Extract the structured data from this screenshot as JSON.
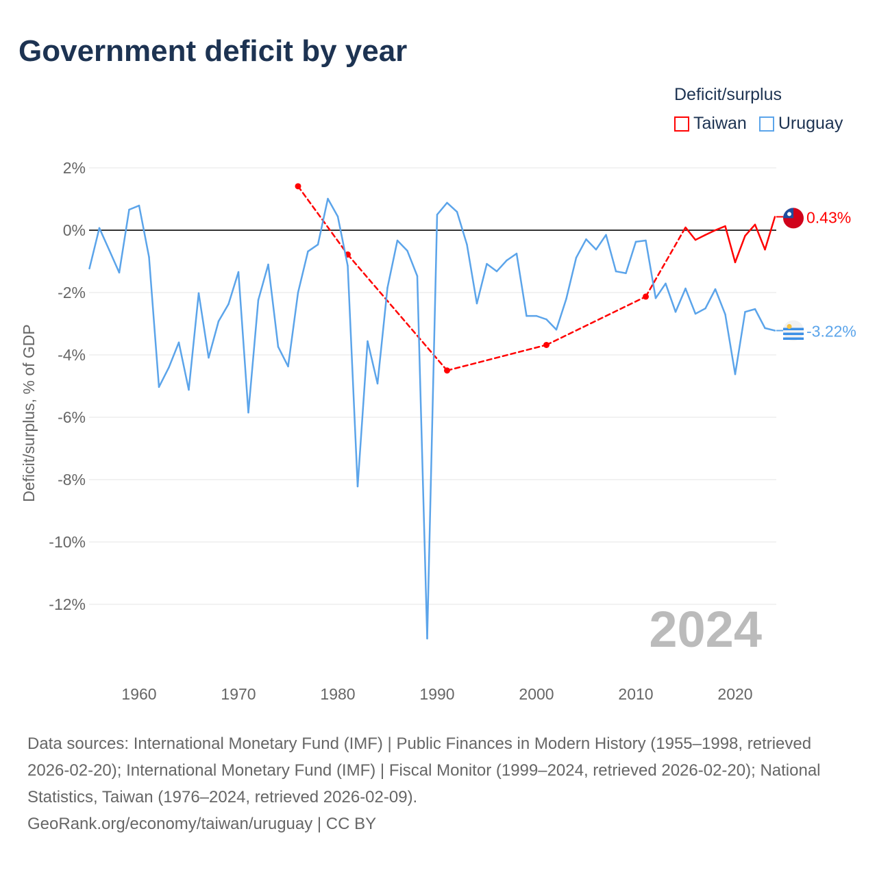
{
  "title": "Government deficit by year",
  "legend": {
    "title": "Deficit/surplus",
    "items": [
      {
        "name": "Taiwan",
        "color": "#ff0000"
      },
      {
        "name": "Uruguay",
        "color": "#5ba4ea"
      }
    ]
  },
  "year_label": "2024",
  "source": "Data sources: International Monetary Fund (IMF) | Public Finances in Modern History (1955–1998, retrieved 2026-02-20); International Monetary Fund (IMF) | Fiscal Monitor (1999–2024, retrieved 2026-02-20); National Statistics, Taiwan (1976–2024, retrieved 2026-02-09).",
  "credit": "GeoRank.org/economy/taiwan/uruguay | CC BY",
  "chart_data": {
    "type": "line",
    "title": "Government deficit by year",
    "ylabel": "Deficit/surplus, % of GDP",
    "xlabel": "",
    "xlim": [
      1955,
      2024
    ],
    "ylim": [
      -13.5,
      2.2
    ],
    "x_ticks": [
      1960,
      1970,
      1980,
      1990,
      2000,
      2010,
      2020
    ],
    "x_tick_labels": [
      "1960",
      "1970",
      "1980",
      "1990",
      "2000",
      "2010",
      "2020"
    ],
    "y_ticks": [
      2,
      0,
      -2,
      -4,
      -6,
      -8,
      -10,
      -12
    ],
    "y_tick_labels": [
      "2%",
      "0%",
      "-2%",
      "-4%",
      "-6%",
      "-8%",
      "-10%",
      "-12%"
    ],
    "grid": true,
    "legend_position": "top-right",
    "series": [
      {
        "name": "Uruguay",
        "color": "#5ba4ea",
        "end_label": "-3.22%",
        "x": [
          1955,
          1956,
          1957,
          1958,
          1959,
          1960,
          1961,
          1962,
          1963,
          1964,
          1965,
          1966,
          1967,
          1968,
          1969,
          1970,
          1971,
          1972,
          1973,
          1974,
          1975,
          1976,
          1977,
          1978,
          1979,
          1980,
          1981,
          1982,
          1983,
          1984,
          1985,
          1986,
          1987,
          1988,
          1989,
          1990,
          1991,
          1992,
          1993,
          1994,
          1995,
          1996,
          1997,
          1998,
          1999,
          2000,
          2001,
          2002,
          2003,
          2004,
          2005,
          2006,
          2007,
          2008,
          2009,
          2010,
          2011,
          2012,
          2013,
          2014,
          2015,
          2016,
          2017,
          2018,
          2019,
          2020,
          2021,
          2022,
          2023,
          2024
        ],
        "values": [
          -1.23,
          0.07,
          -0.64,
          -1.36,
          0.66,
          0.79,
          -0.86,
          -5.03,
          -4.4,
          -3.6,
          -5.12,
          -2.02,
          -4.09,
          -2.92,
          -2.37,
          -1.34,
          -5.85,
          -2.24,
          -1.1,
          -3.74,
          -4.37,
          -2.0,
          -0.68,
          -0.46,
          1.01,
          0.44,
          -1.14,
          -8.22,
          -3.56,
          -4.92,
          -1.85,
          -0.33,
          -0.66,
          -1.47,
          -13.1,
          0.5,
          0.88,
          0.59,
          -0.46,
          -2.35,
          -1.08,
          -1.32,
          -0.97,
          -0.75,
          -2.75,
          -2.75,
          -2.86,
          -3.19,
          -2.2,
          -0.88,
          -0.29,
          -0.62,
          -0.15,
          -1.32,
          -1.38,
          -0.37,
          -0.33,
          -2.18,
          -1.71,
          -2.62,
          -1.87,
          -2.68,
          -2.51,
          -1.89,
          -2.7,
          -4.62,
          -2.62,
          -2.53,
          -3.14,
          -3.22
        ]
      },
      {
        "name": "Taiwan",
        "color": "#ff0000",
        "end_label": "0.43%",
        "x": [
          1976,
          1981,
          1991,
          2001,
          2011,
          2015,
          2016,
          2017,
          2018,
          2019,
          2020,
          2021,
          2022,
          2023,
          2024
        ],
        "values": [
          1.41,
          -0.78,
          -4.5,
          -3.68,
          -2.13,
          0.09,
          -0.31,
          -0.15,
          0.0,
          0.13,
          -1.03,
          -0.18,
          0.18,
          -0.62,
          0.43
        ]
      }
    ]
  }
}
